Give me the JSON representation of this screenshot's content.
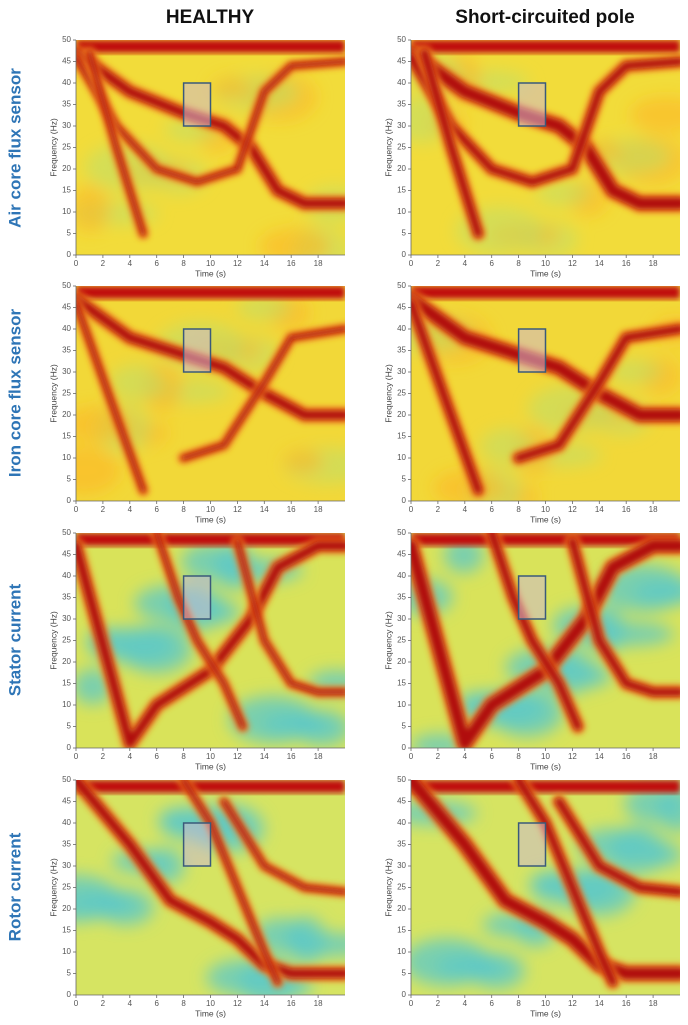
{
  "column_titles": [
    "HEALTHY",
    "Short-circuited pole"
  ],
  "row_titles": [
    "Air core flux sensor",
    "Iron core flux sensor",
    "Stator current",
    "Rotor current"
  ],
  "chart_data": [
    {
      "type": "spectrogram",
      "xlabel": "Time (s)",
      "ylabel": "Frequency (Hz)",
      "xlim": [
        0,
        20
      ],
      "ylim": [
        0,
        50
      ],
      "xticks": [
        0,
        2,
        4,
        6,
        8,
        10,
        12,
        14,
        16,
        18
      ],
      "yticks": [
        0,
        5,
        10,
        15,
        20,
        25,
        30,
        35,
        40,
        45,
        50
      ],
      "highlight": {
        "x": [
          8,
          10
        ],
        "y": [
          30,
          40
        ]
      }
    },
    {
      "type": "spectrogram",
      "xlabel": "Time (s)",
      "ylabel": "Frequency (Hz)",
      "xlim": [
        0,
        20
      ],
      "ylim": [
        0,
        50
      ],
      "xticks": [
        0,
        2,
        4,
        6,
        8,
        10,
        12,
        14,
        16,
        18
      ],
      "yticks": [
        0,
        5,
        10,
        15,
        20,
        25,
        30,
        35,
        40,
        45,
        50
      ],
      "highlight": {
        "x": [
          8,
          10
        ],
        "y": [
          30,
          40
        ]
      }
    },
    {
      "type": "spectrogram",
      "xlabel": "Time (s)",
      "ylabel": "Frequency (Hz)",
      "xlim": [
        0,
        20
      ],
      "ylim": [
        0,
        50
      ],
      "xticks": [
        0,
        2,
        4,
        6,
        8,
        10,
        12,
        14,
        16,
        18
      ],
      "yticks": [
        0,
        5,
        10,
        15,
        20,
        25,
        30,
        35,
        40,
        45,
        50
      ],
      "highlight": {
        "x": [
          8,
          10
        ],
        "y": [
          30,
          40
        ]
      }
    },
    {
      "type": "spectrogram",
      "xlabel": "Time (s)",
      "ylabel": "Frequency (Hz)",
      "xlim": [
        0,
        20
      ],
      "ylim": [
        0,
        50
      ],
      "xticks": [
        0,
        2,
        4,
        6,
        8,
        10,
        12,
        14,
        16,
        18
      ],
      "yticks": [
        0,
        5,
        10,
        15,
        20,
        25,
        30,
        35,
        40,
        45,
        50
      ],
      "highlight": {
        "x": [
          8,
          10
        ],
        "y": [
          30,
          40
        ]
      }
    },
    {
      "type": "spectrogram",
      "xlabel": "Time (s)",
      "ylabel": "Frequency (Hz)",
      "xlim": [
        0,
        20
      ],
      "ylim": [
        0,
        50
      ],
      "xticks": [
        0,
        2,
        4,
        6,
        8,
        10,
        12,
        14,
        16,
        18
      ],
      "yticks": [
        0,
        5,
        10,
        15,
        20,
        25,
        30,
        35,
        40,
        45,
        50
      ],
      "highlight": {
        "x": [
          8,
          10
        ],
        "y": [
          30,
          40
        ]
      }
    },
    {
      "type": "spectrogram",
      "xlabel": "Time (s)",
      "ylabel": "Frequency (Hz)",
      "xlim": [
        0,
        20
      ],
      "ylim": [
        0,
        50
      ],
      "xticks": [
        0,
        2,
        4,
        6,
        8,
        10,
        12,
        14,
        16,
        18
      ],
      "yticks": [
        0,
        5,
        10,
        15,
        20,
        25,
        30,
        35,
        40,
        45,
        50
      ],
      "highlight": {
        "x": [
          8,
          10
        ],
        "y": [
          30,
          40
        ]
      }
    },
    {
      "type": "spectrogram",
      "xlabel": "Time (s)",
      "ylabel": "Frequency (Hz)",
      "xlim": [
        0,
        20
      ],
      "ylim": [
        0,
        50
      ],
      "xticks": [
        0,
        2,
        4,
        6,
        8,
        10,
        12,
        14,
        16,
        18
      ],
      "yticks": [
        0,
        5,
        10,
        15,
        20,
        25,
        30,
        35,
        40,
        45,
        50
      ],
      "highlight": {
        "x": [
          8,
          10
        ],
        "y": [
          30,
          40
        ]
      }
    },
    {
      "type": "spectrogram",
      "xlabel": "Time (s)",
      "ylabel": "Frequency (Hz)",
      "xlim": [
        0,
        20
      ],
      "ylim": [
        0,
        50
      ],
      "xticks": [
        0,
        2,
        4,
        6,
        8,
        10,
        12,
        14,
        16,
        18
      ],
      "yticks": [
        0,
        5,
        10,
        15,
        20,
        25,
        30,
        35,
        40,
        45,
        50
      ],
      "highlight": {
        "x": [
          8,
          10
        ],
        "y": [
          30,
          40
        ]
      }
    }
  ]
}
